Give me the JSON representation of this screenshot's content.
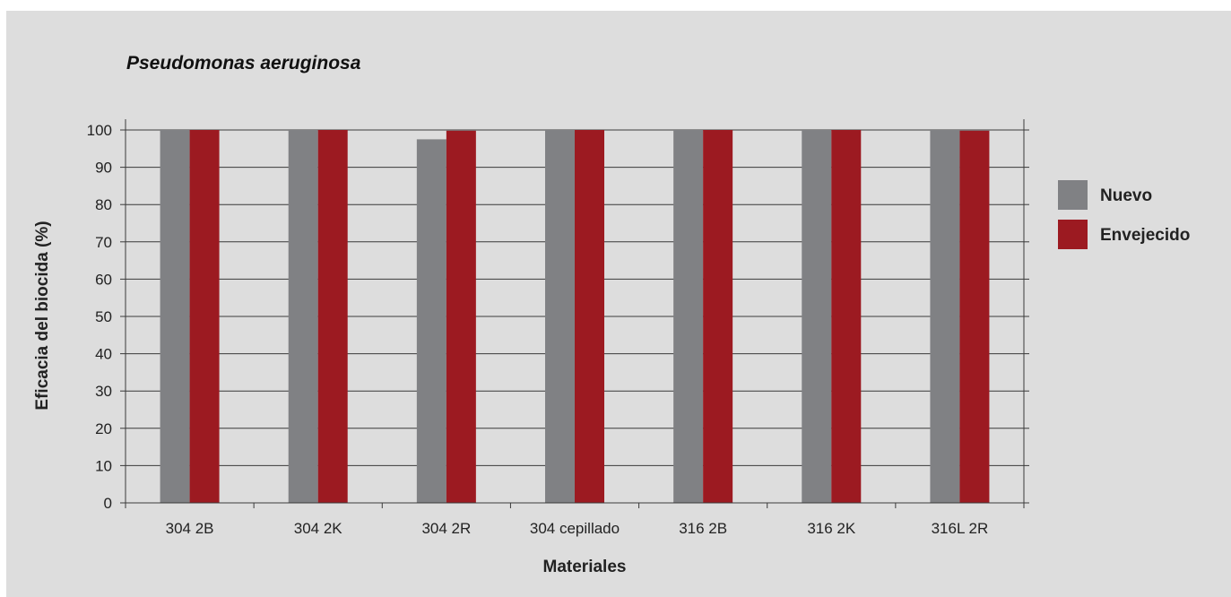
{
  "chart_data": {
    "type": "bar",
    "title": "Pseudomonas aeruginosa",
    "xlabel": "Materiales",
    "ylabel": "Eficacia del biocida (%)",
    "ylim": [
      0,
      100
    ],
    "yticks": [
      0,
      10,
      20,
      30,
      40,
      50,
      60,
      70,
      80,
      90,
      100
    ],
    "categories": [
      "304 2B",
      "304 2K",
      "304 2R",
      "304 cepillado",
      "316 2B",
      "316 2K",
      "316L 2R"
    ],
    "series": [
      {
        "name": "Nuevo",
        "color": "#808184",
        "values": [
          100,
          100,
          97.5,
          100,
          100,
          100,
          100
        ]
      },
      {
        "name": "Envejecido",
        "color": "#9c1a21",
        "values": [
          100,
          100,
          99.8,
          100,
          100,
          100,
          99.8
        ]
      }
    ],
    "grid": true,
    "legend": "right"
  }
}
